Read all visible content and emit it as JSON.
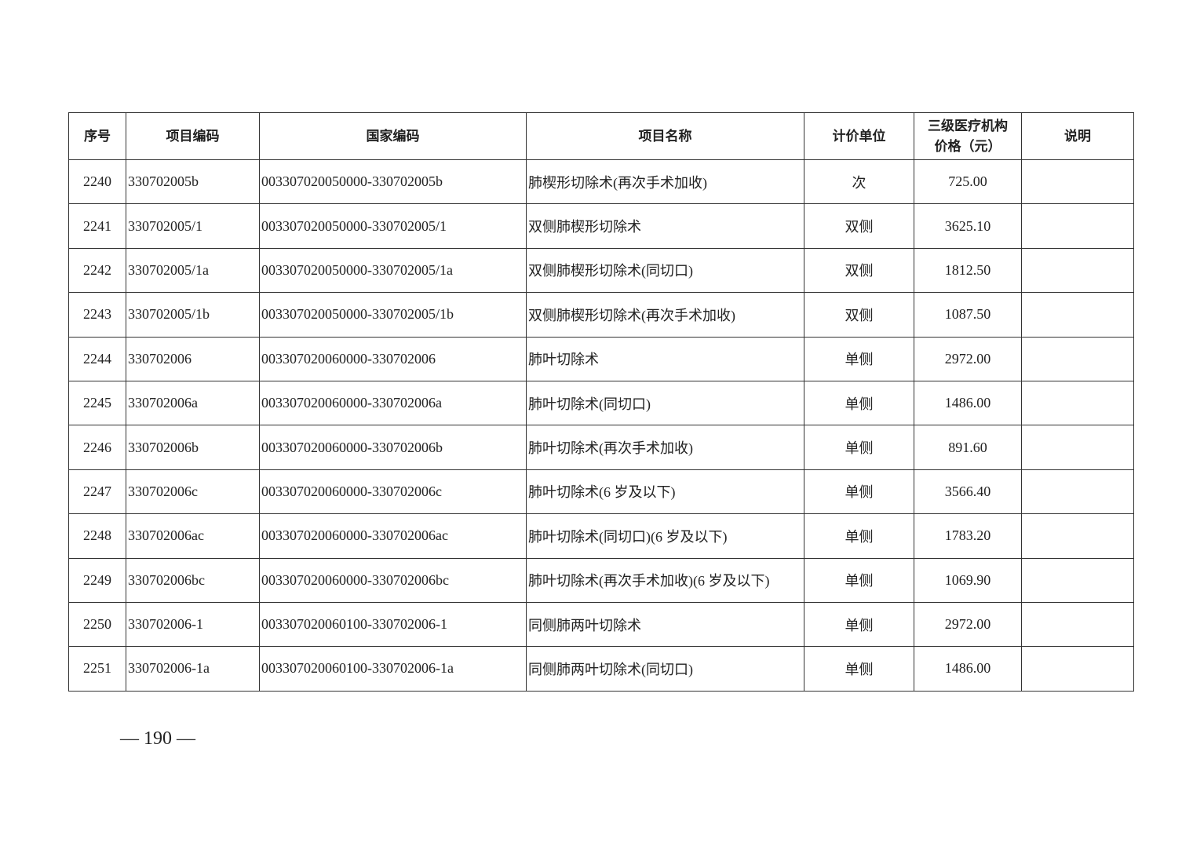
{
  "headers": [
    "序号",
    "项目编码",
    "国家编码",
    "项目名称",
    "计价单位",
    "三级医疗机构价格（元）",
    "说明"
  ],
  "header_price_lines": [
    "三级医疗机构",
    "价格（元）"
  ],
  "rows": [
    {
      "no": "2240",
      "code": "330702005b",
      "national": "003307020050000-330702005b",
      "name": "肺楔形切除术(再次手术加收)",
      "unit": "次",
      "price": "725.00",
      "note": ""
    },
    {
      "no": "2241",
      "code": "330702005/1",
      "national": "003307020050000-330702005/1",
      "name": "双侧肺楔形切除术",
      "unit": "双侧",
      "price": "3625.10",
      "note": ""
    },
    {
      "no": "2242",
      "code": "330702005/1a",
      "national": "003307020050000-330702005/1a",
      "name": "双侧肺楔形切除术(同切口)",
      "unit": "双侧",
      "price": "1812.50",
      "note": ""
    },
    {
      "no": "2243",
      "code": "330702005/1b",
      "national": "003307020050000-330702005/1b",
      "name": "双侧肺楔形切除术(再次手术加收)",
      "unit": "双侧",
      "price": "1087.50",
      "note": ""
    },
    {
      "no": "2244",
      "code": "330702006",
      "national": "003307020060000-330702006",
      "name": "肺叶切除术",
      "unit": "单侧",
      "price": "2972.00",
      "note": ""
    },
    {
      "no": "2245",
      "code": "330702006a",
      "national": "003307020060000-330702006a",
      "name": "肺叶切除术(同切口)",
      "unit": "单侧",
      "price": "1486.00",
      "note": ""
    },
    {
      "no": "2246",
      "code": "330702006b",
      "national": "003307020060000-330702006b",
      "name": "肺叶切除术(再次手术加收)",
      "unit": "单侧",
      "price": "891.60",
      "note": ""
    },
    {
      "no": "2247",
      "code": "330702006c",
      "national": "003307020060000-330702006c",
      "name": "肺叶切除术(6 岁及以下)",
      "unit": "单侧",
      "price": "3566.40",
      "note": ""
    },
    {
      "no": "2248",
      "code": "330702006ac",
      "national": "003307020060000-330702006ac",
      "name": "肺叶切除术(同切口)(6 岁及以下)",
      "unit": "单侧",
      "price": "1783.20",
      "note": ""
    },
    {
      "no": "2249",
      "code": "330702006bc",
      "national": "003307020060000-330702006bc",
      "name": "肺叶切除术(再次手术加收)(6 岁及以下)",
      "unit": "单侧",
      "price": "1069.90",
      "note": ""
    },
    {
      "no": "2250",
      "code": "330702006-1",
      "national": "003307020060100-330702006-1",
      "name": "同侧肺两叶切除术",
      "unit": "单侧",
      "price": "2972.00",
      "note": ""
    },
    {
      "no": "2251",
      "code": "330702006-1a",
      "national": "003307020060100-330702006-1a",
      "name": "同侧肺两叶切除术(同切口)",
      "unit": "单侧",
      "price": "1486.00",
      "note": ""
    }
  ],
  "page_number": "— 190 —"
}
